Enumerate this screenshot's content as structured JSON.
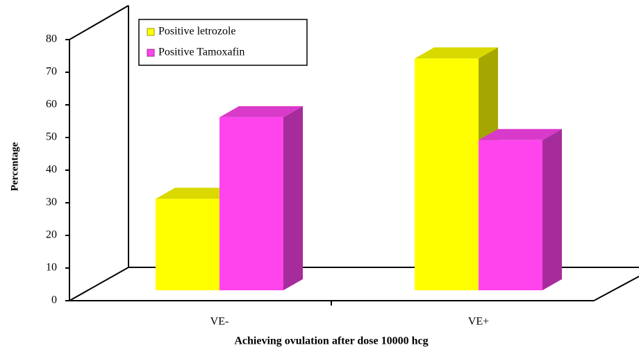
{
  "chart_data": {
    "type": "bar3d",
    "x_label": "Achieving ovulation after dose 10000 hcg",
    "y_label": "Percentage",
    "categories": [
      "VE-",
      "VE+"
    ],
    "series": [
      {
        "name": "Positive letrozole",
        "color": "#ffff00",
        "values": [
          28,
          71
        ]
      },
      {
        "name": "Positive Tamoxafin",
        "color": "#ff44ee",
        "values": [
          53,
          46
        ]
      }
    ],
    "ylim": [
      0,
      80
    ],
    "yticks": [
      0,
      10,
      20,
      30,
      40,
      50,
      60,
      70,
      80
    ]
  }
}
